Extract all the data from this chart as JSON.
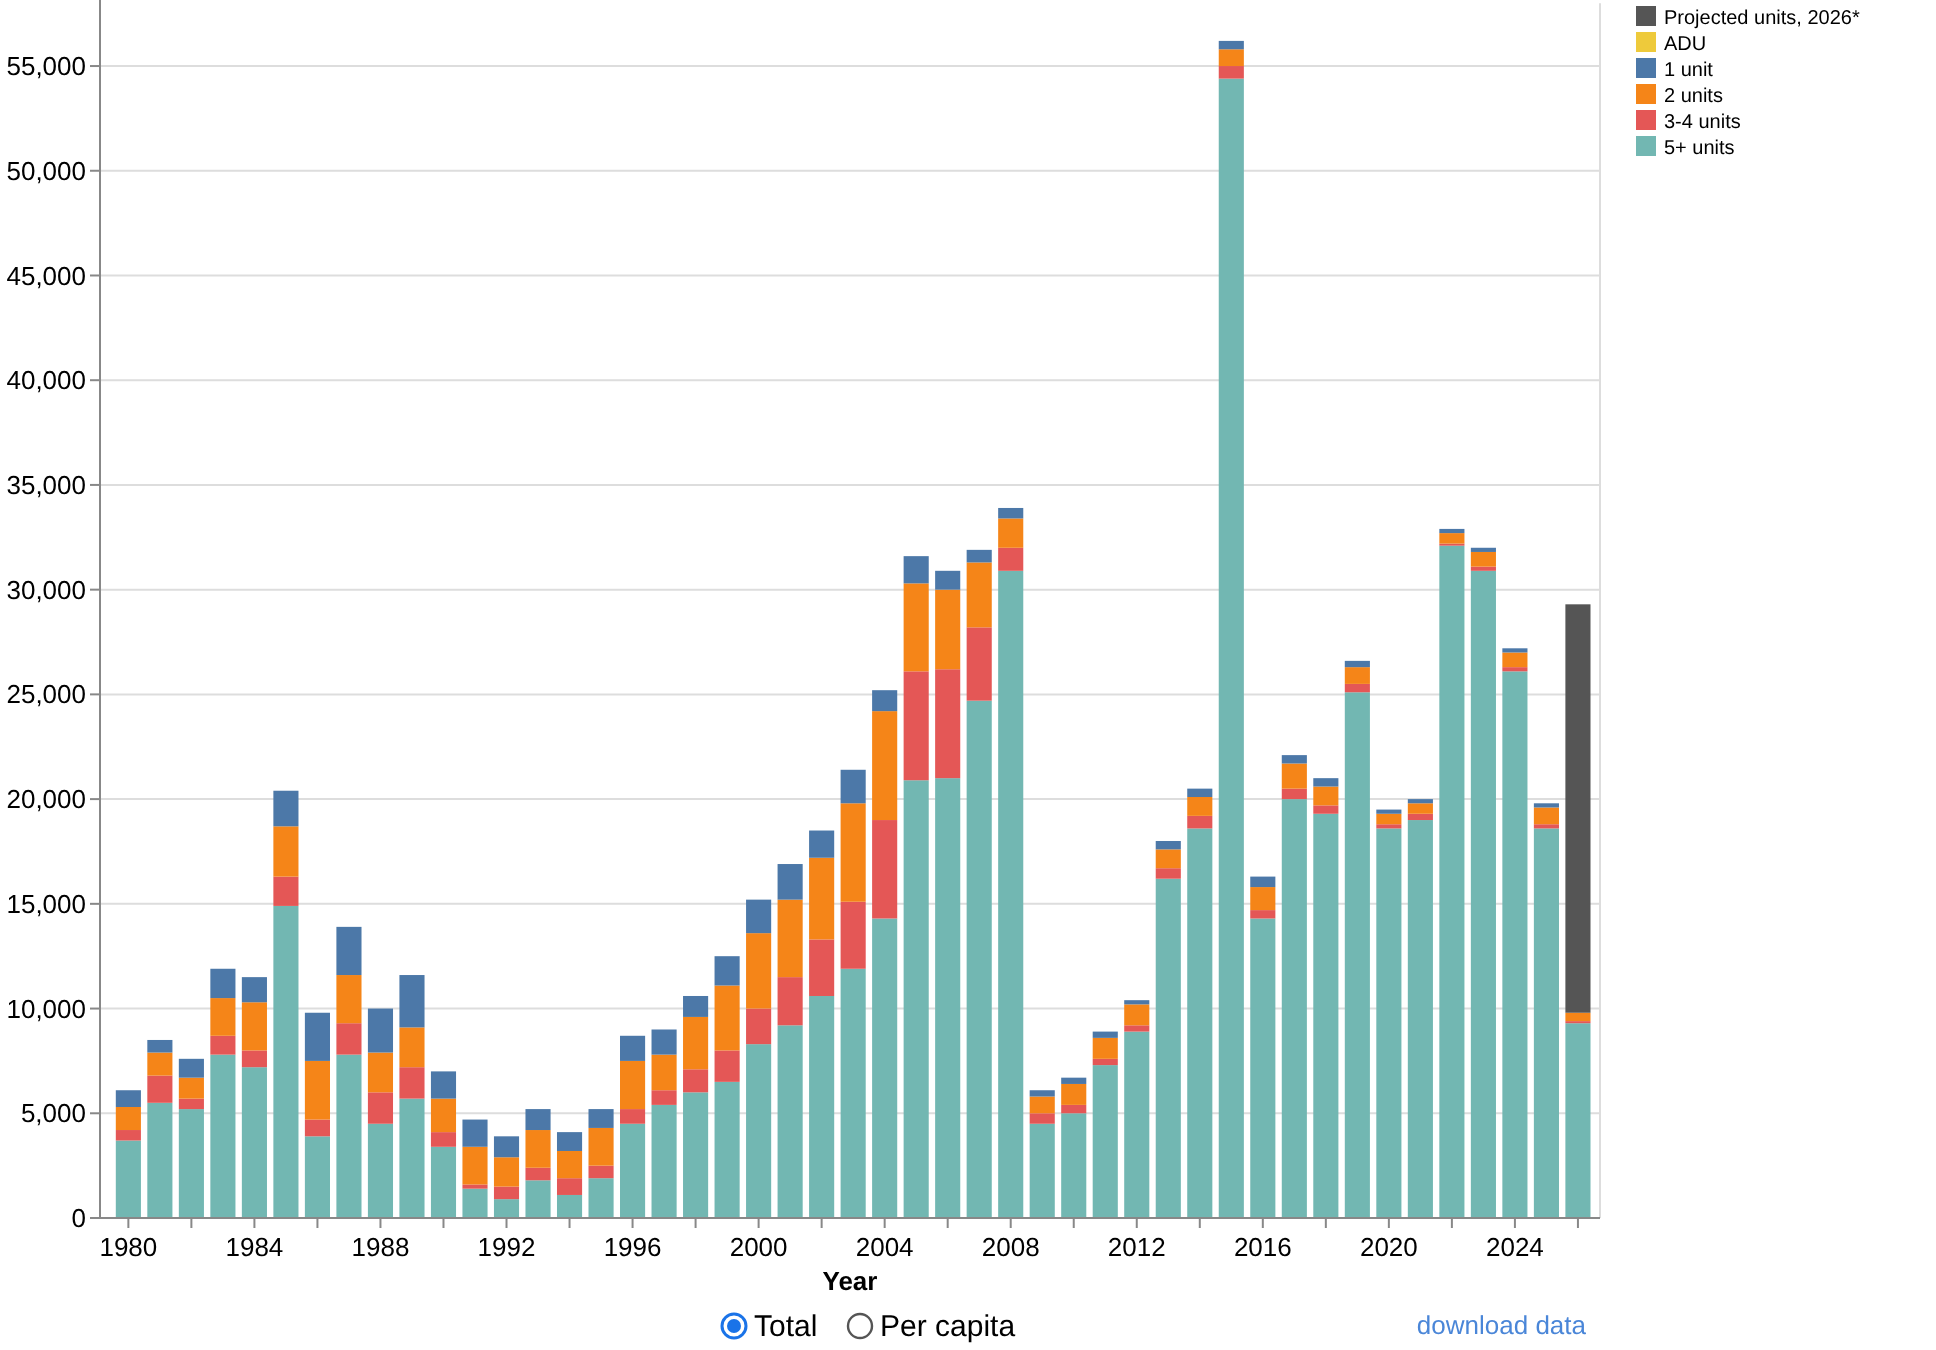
{
  "chart_data": {
    "type": "bar",
    "stacked": true,
    "xlabel": "Year",
    "x": [
      1980,
      1981,
      1982,
      1983,
      1984,
      1985,
      1986,
      1987,
      1988,
      1989,
      1990,
      1991,
      1992,
      1993,
      1994,
      1995,
      1996,
      1997,
      1998,
      1999,
      2000,
      2001,
      2002,
      2003,
      2004,
      2005,
      2006,
      2007,
      2008,
      2009,
      2010,
      2011,
      2012,
      2013,
      2014,
      2015,
      2016,
      2017,
      2018,
      2019,
      2020,
      2021,
      2022,
      2023,
      2024,
      2025,
      2026
    ],
    "series": [
      {
        "name": "5+ units",
        "color": "#72b7b2",
        "values": [
          3700,
          5500,
          5200,
          7800,
          7200,
          14900,
          3900,
          7800,
          4500,
          5700,
          3400,
          1400,
          900,
          1800,
          1100,
          1900,
          4500,
          5400,
          6000,
          6500,
          8300,
          9200,
          10600,
          11900,
          14300,
          20900,
          21000,
          24700,
          30900,
          4500,
          5000,
          7300,
          8900,
          16200,
          18600,
          54400,
          14300,
          20000,
          19300,
          25100,
          18600,
          19000,
          32100,
          30900,
          26100,
          18600,
          9300
        ]
      },
      {
        "name": "3-4 units",
        "color": "#e45756",
        "values": [
          500,
          1300,
          500,
          900,
          800,
          1400,
          800,
          1500,
          1500,
          1500,
          700,
          200,
          600,
          600,
          800,
          600,
          700,
          700,
          1100,
          1500,
          1700,
          2300,
          2700,
          3200,
          4700,
          5200,
          5200,
          3500,
          1100,
          500,
          400,
          300,
          300,
          500,
          600,
          600,
          400,
          500,
          400,
          400,
          200,
          300,
          100,
          200,
          200,
          200,
          100
        ]
      },
      {
        "name": "2 units",
        "color": "#f58518",
        "values": [
          1100,
          1100,
          1000,
          1800,
          2300,
          2400,
          2800,
          2300,
          1900,
          1900,
          1600,
          1800,
          1400,
          1800,
          1300,
          1800,
          2300,
          1700,
          2500,
          3100,
          3600,
          3700,
          3900,
          4700,
          5200,
          4200,
          3800,
          3100,
          1400,
          800,
          1000,
          1000,
          1000,
          900,
          900,
          800,
          1100,
          1200,
          900,
          800,
          500,
          500,
          500,
          700,
          700,
          800,
          400
        ]
      },
      {
        "name": "1 unit",
        "color": "#4c78a8",
        "values": [
          800,
          600,
          900,
          1400,
          1200,
          1700,
          2300,
          2300,
          2100,
          2500,
          1300,
          1300,
          1000,
          1000,
          900,
          900,
          1200,
          1200,
          1000,
          1400,
          1600,
          1700,
          1300,
          1600,
          1000,
          1300,
          900,
          600,
          500,
          300,
          300,
          300,
          200,
          400,
          400,
          400,
          500,
          400,
          400,
          300,
          200,
          200,
          200,
          200,
          200,
          200,
          null
        ]
      },
      {
        "name": "ADU",
        "color": "#eeca3b",
        "values": [
          null,
          null,
          null,
          null,
          null,
          null,
          null,
          null,
          null,
          null,
          null,
          null,
          null,
          null,
          null,
          null,
          null,
          null,
          null,
          null,
          null,
          null,
          null,
          null,
          null,
          null,
          null,
          null,
          null,
          null,
          null,
          null,
          null,
          null,
          null,
          null,
          null,
          null,
          null,
          null,
          null,
          null,
          null,
          null,
          null,
          null,
          null
        ]
      },
      {
        "name": "Projected units, 2026*",
        "color": "#555555",
        "values": [
          null,
          null,
          null,
          null,
          null,
          null,
          null,
          null,
          null,
          null,
          null,
          null,
          null,
          null,
          null,
          null,
          null,
          null,
          null,
          null,
          null,
          null,
          null,
          null,
          null,
          null,
          null,
          null,
          null,
          null,
          null,
          null,
          null,
          null,
          null,
          null,
          null,
          null,
          null,
          null,
          null,
          null,
          null,
          null,
          null,
          null,
          19500
        ]
      }
    ],
    "xlim": [
      1979.1,
      2026.7
    ],
    "xticks": [
      {
        "value": 1980,
        "label": "1980"
      },
      {
        "value": 1982,
        "label": null
      },
      {
        "value": 1984,
        "label": "1984"
      },
      {
        "value": 1986,
        "label": null
      },
      {
        "value": 1988,
        "label": "1988"
      },
      {
        "value": 1990,
        "label": null
      },
      {
        "value": 1992,
        "label": "1992"
      },
      {
        "value": 1994,
        "label": null
      },
      {
        "value": 1996,
        "label": "1996"
      },
      {
        "value": 1998,
        "label": null
      },
      {
        "value": 2000,
        "label": "2000"
      },
      {
        "value": 2002,
        "label": null
      },
      {
        "value": 2004,
        "label": "2004"
      },
      {
        "value": 2006,
        "label": null
      },
      {
        "value": 2008,
        "label": "2008"
      },
      {
        "value": 2010,
        "label": null
      },
      {
        "value": 2012,
        "label": "2012"
      },
      {
        "value": 2014,
        "label": null
      },
      {
        "value": 2016,
        "label": "2016"
      },
      {
        "value": 2018,
        "label": null
      },
      {
        "value": 2020,
        "label": "2020"
      },
      {
        "value": 2022,
        "label": null
      },
      {
        "value": 2024,
        "label": "2024"
      },
      {
        "value": 2026,
        "label": null
      }
    ],
    "ylim": [
      0,
      58000
    ],
    "yticks": [
      {
        "value": 0,
        "label": "0"
      },
      {
        "value": 5000,
        "label": "5,000"
      },
      {
        "value": 10000,
        "label": "10,000"
      },
      {
        "value": 15000,
        "label": "15,000"
      },
      {
        "value": 20000,
        "label": "20,000"
      },
      {
        "value": 25000,
        "label": "25,000"
      },
      {
        "value": 30000,
        "label": "30,000"
      },
      {
        "value": 35000,
        "label": "35,000"
      },
      {
        "value": 40000,
        "label": "40,000"
      },
      {
        "value": 45000,
        "label": "45,000"
      },
      {
        "value": 50000,
        "label": "50,000"
      },
      {
        "value": 55000,
        "label": "55,000"
      }
    ],
    "grid": "y",
    "legend": "top right",
    "annotations": [
      "Total",
      "Per capita",
      "download data"
    ]
  }
}
